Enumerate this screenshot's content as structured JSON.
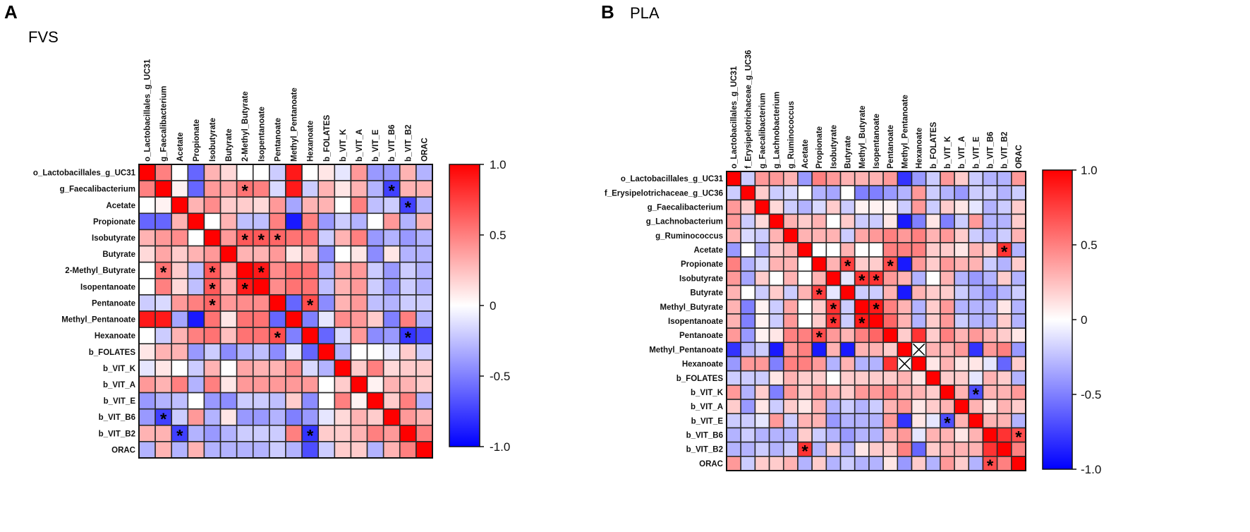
{
  "chart_data": [
    {
      "type": "heatmap",
      "panel": "A",
      "title": "FVS",
      "labels": [
        "o_Lactobacillales_g_UC31",
        "g_Faecalibacterium",
        "Acetate",
        "Propionate",
        "Isobutyrate",
        "Butyrate",
        "2-Methyl_Butyrate",
        "Isopentanoate",
        "Pentanoate",
        "Methyl_Pentanoate",
        "Hexanoate",
        "b_FOLATES",
        "b_VIT_K",
        "b_VIT_A",
        "b_VIT_E",
        "b_VIT_B6",
        "b_VIT_B2",
        "ORAC"
      ],
      "values_upper_triangle": [
        [
          1,
          0.5,
          0,
          -0.6,
          0.3,
          0.15,
          0,
          0,
          -0.2,
          0.9,
          0,
          0.1,
          -0.1,
          0.4,
          -0.4,
          -0.4,
          0.3,
          -0.3
        ],
        [
          1,
          0.05,
          -0.6,
          0.4,
          0.35,
          0.55,
          0.5,
          -0.15,
          0.9,
          -0.2,
          0.3,
          0.1,
          0.3,
          -0.3,
          -0.75,
          0.3,
          0.3
        ],
        [
          1,
          0.3,
          0.45,
          0.2,
          0.2,
          0.15,
          0.4,
          -0.35,
          0.3,
          0.3,
          0,
          0.5,
          -0.25,
          -0.2,
          -0.75,
          -0.3
        ],
        [
          1,
          0,
          0.3,
          -0.25,
          -0.25,
          0.5,
          -0.9,
          0.5,
          -0.4,
          -0.2,
          -0.3,
          0,
          0.4,
          -0.3,
          0.3
        ],
        [
          1,
          0.4,
          0.65,
          0.65,
          0.6,
          0.55,
          0.55,
          -0.2,
          0.3,
          0.5,
          -0.4,
          -0.3,
          -0.4,
          -0.3
        ],
        [
          1,
          0.3,
          0.3,
          0.4,
          0.1,
          0.25,
          -0.45,
          0,
          0.1,
          -0.45,
          0.1,
          -0.3,
          -0.3
        ],
        [
          1,
          0.9,
          0.45,
          0.55,
          0.55,
          -0.3,
          0.35,
          0.4,
          -0.2,
          -0.4,
          -0.2,
          -0.3
        ],
        [
          1,
          0.45,
          0.55,
          0.55,
          -0.25,
          0.3,
          0.4,
          -0.2,
          -0.4,
          -0.2,
          -0.3
        ],
        [
          1,
          -0.6,
          0.7,
          -0.45,
          0.3,
          0.4,
          -0.25,
          -0.3,
          -0.2,
          -0.2
        ],
        [
          1,
          -0.5,
          -0.1,
          0.45,
          0.4,
          0.2,
          -0.5,
          0.5,
          -0.3
        ],
        [
          1,
          -0.6,
          -0.15,
          0.4,
          -0.45,
          -0.4,
          -0.8,
          -0.7
        ],
        [
          1,
          -0.3,
          0,
          0,
          -0.1,
          0.2,
          -0.2
        ],
        [
          1,
          0.2,
          0.5,
          0.15,
          0.2,
          0.2
        ],
        [
          1,
          0.05,
          0.3,
          0.3,
          0.2
        ],
        [
          1,
          0.2,
          0.5,
          -0.3
        ],
        [
          1,
          0.4,
          0.3
        ],
        [
          1,
          0.5
        ],
        [
          1
        ]
      ],
      "significant_cells": [
        [
          1,
          6
        ],
        [
          1,
          15
        ],
        [
          2,
          16
        ],
        [
          4,
          6
        ],
        [
          4,
          7
        ],
        [
          4,
          8
        ],
        [
          6,
          1
        ],
        [
          6,
          4
        ],
        [
          6,
          7
        ],
        [
          7,
          4
        ],
        [
          7,
          6
        ],
        [
          8,
          4
        ],
        [
          8,
          10
        ],
        [
          10,
          8
        ],
        [
          10,
          16
        ],
        [
          15,
          1
        ],
        [
          16,
          2
        ],
        [
          16,
          10
        ]
      ],
      "missing_cells": [],
      "colorbar": {
        "range": [
          -1.0,
          1.0
        ],
        "ticks": [
          "1.0",
          "0.5",
          "0",
          "-0.5",
          "-1.0"
        ],
        "low_color": "#0000ff",
        "mid_color": "#ffffff",
        "high_color": "#ff0000"
      }
    },
    {
      "type": "heatmap",
      "panel": "B",
      "title": "PLA",
      "labels": [
        "o_Lactobacillales_g_UC31",
        "f_Erysipelotrichaceae_g_UC36",
        "g_Faecalibacterium",
        "g_Lachnobacterium",
        "g_Ruminococcus",
        "Acetate",
        "Propionate",
        "Isobutyrate",
        "Butyrate",
        "Methyl_Butyrate",
        "Isopentanoate",
        "Pentanoate",
        "Methyl_Pentanoate",
        "Hexanoate",
        "b_FOLATES",
        "b_VIT_K",
        "b_VIT_A",
        "b_VIT_E",
        "b_VIT_B6",
        "b_VIT_B2",
        "ORAC"
      ],
      "values_upper_triangle": [
        [
          1,
          -0.2,
          0.4,
          0.4,
          0.3,
          -0.4,
          0.5,
          0.4,
          0.3,
          0.3,
          0.3,
          0.4,
          -0.8,
          -0.4,
          -0.2,
          0.4,
          0.2,
          -0.2,
          -0.3,
          -0.3,
          0.4
        ],
        [
          1,
          0.2,
          -0.2,
          -0.15,
          0,
          -0.3,
          -0.35,
          0,
          -0.5,
          -0.5,
          -0.4,
          -0.3,
          0.4,
          -0.2,
          -0.3,
          -0.4,
          -0.2,
          -0.2,
          -0.3,
          -0.2
        ],
        [
          1,
          0.15,
          -0.2,
          -0.3,
          -0.15,
          0.2,
          -0.2,
          0.05,
          0.05,
          0.05,
          -0.2,
          0.4,
          -0.2,
          0.2,
          0.1,
          -0.1,
          -0.3,
          -0.2,
          0.2
        ],
        [
          1,
          0.3,
          0.2,
          0.3,
          0,
          0.2,
          -0.2,
          -0.2,
          0.1,
          -0.9,
          -0.5,
          0.1,
          -0.5,
          -0.2,
          0.4,
          -0.3,
          -0.3,
          0.2
        ],
        [
          1,
          0.3,
          0.3,
          0.3,
          -0.2,
          0.35,
          0.4,
          0.5,
          0.4,
          0.5,
          0.3,
          0.4,
          0.2,
          -0.2,
          -0.3,
          -0.2,
          0.3
        ],
        [
          1,
          0,
          0,
          0.3,
          0,
          0,
          0.5,
          0.5,
          0.5,
          0.2,
          0.2,
          0.1,
          0.3,
          0.2,
          0.8,
          -0.3
        ],
        [
          1,
          0.3,
          0.75,
          0.2,
          0.2,
          0.7,
          -0.9,
          0.4,
          0.2,
          0.4,
          0.3,
          0.3,
          -0.2,
          -0.3,
          0.2
        ],
        [
          1,
          -0.1,
          0.8,
          0.8,
          0.4,
          0.3,
          -0.3,
          0,
          0.3,
          -0.3,
          -0.4,
          -0.3,
          0.2,
          -0.3
        ],
        [
          1,
          -0.2,
          -0.2,
          0.3,
          -0.9,
          0.3,
          0.2,
          0.2,
          -0.2,
          -0.3,
          -0.4,
          -0.3,
          -0.2
        ],
        [
          1,
          0.9,
          0.5,
          0.3,
          -0.3,
          0.2,
          0.4,
          -0.3,
          -0.3,
          -0.3,
          0.1,
          -0.3
        ],
        [
          1,
          0.6,
          0.3,
          -0.3,
          0.2,
          0.4,
          -0.2,
          -0.3,
          -0.3,
          0.2,
          -0.3
        ],
        [
          1,
          0.2,
          0.8,
          0.2,
          0.5,
          0.3,
          0.4,
          0.3,
          0.2,
          0.1
        ],
        [
          1,
          null,
          0.3,
          0.3,
          0.4,
          -0.8,
          0.4,
          0.5,
          -0.4
        ],
        [
          1,
          0.1,
          0.3,
          0.1,
          0.1,
          -0.1,
          -0.6,
          0.2
        ],
        [
          1,
          0.2,
          0.2,
          -0.1,
          0.3,
          0.2,
          -0.3
        ],
        [
          1,
          0.3,
          -0.7,
          0.3,
          0.3,
          0.4
        ],
        [
          1,
          0.3,
          0.1,
          0.3,
          0.2
        ],
        [
          1,
          0.3,
          0.3,
          -0.3
        ],
        [
          1,
          0.8,
          0.7
        ],
        [
          1,
          0.5
        ],
        [
          1
        ]
      ],
      "significant_cells": [
        [
          5,
          19
        ],
        [
          6,
          8
        ],
        [
          6,
          11
        ],
        [
          7,
          9
        ],
        [
          7,
          10
        ],
        [
          8,
          6
        ],
        [
          9,
          7
        ],
        [
          9,
          10
        ],
        [
          10,
          7
        ],
        [
          10,
          9
        ],
        [
          11,
          6
        ],
        [
          15,
          17
        ],
        [
          17,
          15
        ],
        [
          18,
          20
        ],
        [
          19,
          5
        ],
        [
          20,
          18
        ]
      ],
      "missing_cells": [
        [
          12,
          13
        ],
        [
          13,
          12
        ]
      ],
      "colorbar": {
        "range": [
          -1.0,
          1.0
        ],
        "ticks": [
          "1.0",
          "0.5",
          "0",
          "-0.5",
          "-1.0"
        ],
        "low_color": "#0000ff",
        "mid_color": "#ffffff",
        "high_color": "#ff0000"
      }
    }
  ],
  "significance_marker": "*"
}
